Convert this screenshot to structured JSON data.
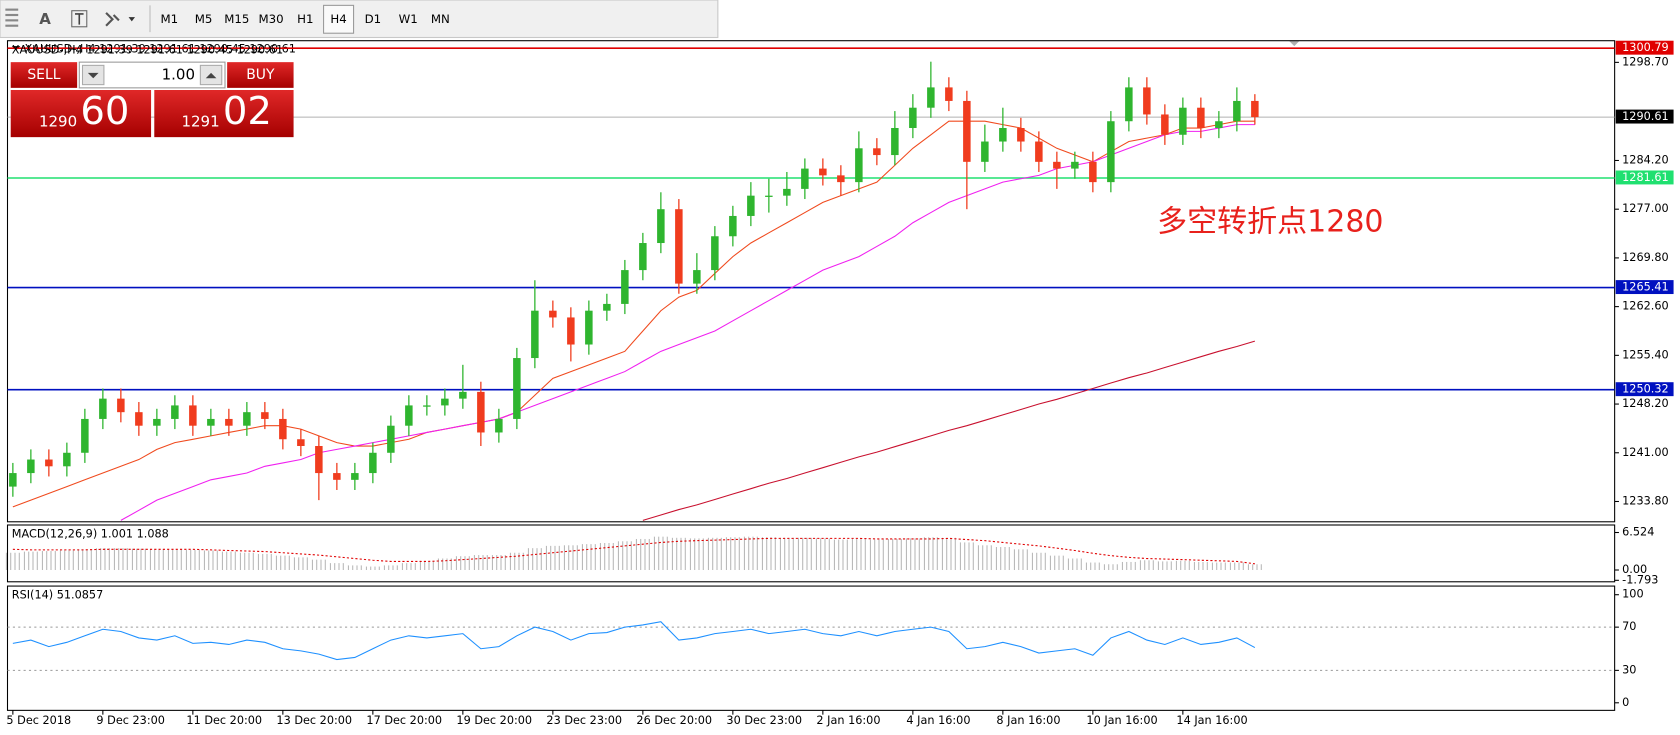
{
  "toolbar": {
    "text_tool": "A",
    "timeframes": [
      "M1",
      "M5",
      "M15",
      "M30",
      "H1",
      "H4",
      "D1",
      "W1",
      "MN"
    ],
    "active": "H4"
  },
  "trade_panel": {
    "sell": "SELL",
    "buy": "BUY",
    "lot": "1.00",
    "sell_big": "1290",
    "sell_small": "60",
    "buy_big": "1291",
    "buy_small": "02"
  },
  "chart_data": [
    {
      "type": "candlestick",
      "title": "XAUUSD-,H4  1291.39 1291.61 1290.45 1290.61",
      "annotation": "多空转折点1280",
      "annotation_color": "#e8211c",
      "up_color": "#2fb52f",
      "down_color": "#f03c1e",
      "categories": [
        "5 Dec 2018",
        null,
        null,
        null,
        null,
        "9 Dec 23:00",
        null,
        null,
        null,
        null,
        "11 Dec 20:00",
        null,
        null,
        null,
        null,
        "13 Dec 20:00",
        null,
        null,
        null,
        null,
        "17 Dec 20:00",
        null,
        null,
        null,
        null,
        "19 Dec 20:00",
        null,
        null,
        null,
        null,
        "23 Dec 23:00",
        null,
        null,
        null,
        null,
        "26 Dec 20:00",
        null,
        null,
        null,
        null,
        "30 Dec 23:00",
        null,
        null,
        null,
        null,
        "2 Jan 16:00",
        null,
        null,
        null,
        null,
        "4 Jan 16:00",
        null,
        null,
        null,
        null,
        "8 Jan 16:00",
        null,
        null,
        null,
        null,
        "10 Jan 16:00",
        null,
        null,
        null,
        null,
        "14 Jan 16:00",
        null,
        null,
        null,
        null
      ],
      "open": [
        1236,
        1238,
        1240,
        1239,
        1241,
        1246,
        1249,
        1247,
        1245,
        1246,
        1248,
        1245,
        1246,
        1245,
        1247,
        1246,
        1243,
        1242,
        1238,
        1237,
        1238,
        1241,
        1245,
        1248,
        1248,
        1249,
        1250,
        1244,
        1246,
        1255,
        1262,
        1261,
        1257,
        1262,
        1263,
        1268,
        1272,
        1277,
        1266,
        1268,
        1273,
        1276,
        1279,
        1279,
        1280,
        1283,
        1282,
        1281,
        1286,
        1285,
        1289,
        1292,
        1295,
        1293,
        1284,
        1287,
        1289,
        1287,
        1284,
        1283,
        1284,
        1281,
        1290,
        1295,
        1291,
        1288,
        1292,
        1289,
        1290,
        1293
      ],
      "high": [
        1239.5,
        1241.5,
        1241.5,
        1242.5,
        1247.5,
        1250.5,
        1250.5,
        1248.5,
        1247.5,
        1249.5,
        1249.5,
        1247.5,
        1247.5,
        1248.5,
        1248.5,
        1247.5,
        1244.5,
        1243.5,
        1239.5,
        1239.5,
        1242.5,
        1246.5,
        1249.5,
        1249.5,
        1250.5,
        1254,
        1251.5,
        1247.5,
        1256.5,
        1266.5,
        1263.5,
        1262.5,
        1263.5,
        1264.5,
        1269.5,
        1273.5,
        1279.5,
        1278.5,
        1270.5,
        1274.5,
        1277.5,
        1281,
        1281.5,
        1282.5,
        1284.5,
        1284.5,
        1283.5,
        1288.5,
        1287.5,
        1291.5,
        1294,
        1298.8,
        1296.5,
        1294.5,
        1289.5,
        1292,
        1290.5,
        1288.5,
        1285.5,
        1285.5,
        1285.5,
        1291.5,
        1296.5,
        1296.5,
        1292.5,
        1293.5,
        1293.5,
        1291.5,
        1295,
        1294
      ],
      "low": [
        1234.5,
        1236.5,
        1237.5,
        1237.5,
        1239.5,
        1244.5,
        1245.5,
        1243.5,
        1243.5,
        1244.5,
        1243.5,
        1243.5,
        1243.5,
        1243.5,
        1244.5,
        1241.5,
        1240.5,
        1234,
        1235.5,
        1235.5,
        1236.5,
        1239.5,
        1243.5,
        1246.5,
        1246.5,
        1247.5,
        1242,
        1242.5,
        1244.5,
        1253.5,
        1259.5,
        1254.5,
        1255.5,
        1260.5,
        1261.5,
        1266.5,
        1270.5,
        1264.5,
        1264.5,
        1266.5,
        1271.5,
        1274.5,
        1276.5,
        1277.5,
        1278.5,
        1280.5,
        1279,
        1279.5,
        1283.5,
        1283.5,
        1287.5,
        1290.5,
        1291.5,
        1277,
        1282.5,
        1285.5,
        1285.5,
        1282.5,
        1280,
        1281.5,
        1279.5,
        1279.5,
        1288.5,
        1289.5,
        1286.5,
        1286.5,
        1287.5,
        1287.5,
        1288.5,
        1289.5
      ],
      "close": [
        1238,
        1240,
        1239,
        1241,
        1246,
        1249,
        1247,
        1245,
        1246,
        1248,
        1245,
        1246,
        1245,
        1247,
        1246,
        1243,
        1242,
        1238,
        1237,
        1238,
        1241,
        1245,
        1248,
        1248,
        1249,
        1250,
        1244,
        1246,
        1255,
        1262,
        1261,
        1257,
        1262,
        1263,
        1268,
        1272,
        1277,
        1266,
        1268,
        1273,
        1276,
        1279,
        1279,
        1280,
        1283,
        1282,
        1281,
        1286,
        1285,
        1289,
        1292,
        1295,
        1293,
        1284,
        1287,
        1289,
        1287,
        1284,
        1283,
        1284,
        1281,
        1290,
        1295,
        1291,
        1288,
        1292,
        1289,
        1290,
        1293,
        1290.61
      ],
      "series": [
        {
          "color": "#f04a1e",
          "values": [
            1233,
            1234,
            1235,
            1236,
            1237,
            1238,
            1239,
            1240,
            1241.5,
            1242.5,
            1243,
            1243.5,
            1244,
            1244.5,
            1245,
            1245,
            1244.5,
            1243.5,
            1242.5,
            1242,
            1242,
            1242.5,
            1243,
            1244,
            1244.5,
            1245,
            1245.5,
            1246,
            1247,
            1249.5,
            1252,
            1253,
            1254,
            1255,
            1256,
            1259,
            1262,
            1264,
            1265,
            1267.5,
            1270,
            1272,
            1273.5,
            1275,
            1276.5,
            1278,
            1279,
            1280,
            1281,
            1283.5,
            1286,
            1288,
            1290,
            1290,
            1290,
            1289.5,
            1289,
            1287.5,
            1286,
            1285,
            1284,
            1285.5,
            1287,
            1287.5,
            1288,
            1289,
            1289,
            1289.5,
            1290,
            1290
          ]
        },
        {
          "color": "#f020f0",
          "values": [
            null,
            null,
            null,
            null,
            null,
            null,
            1231,
            1232.5,
            1234,
            1235,
            1236,
            1237,
            1237.5,
            1238,
            1239,
            1239.5,
            1240,
            1241,
            1241.5,
            1242,
            1242.5,
            1243,
            1243.5,
            1244,
            1244.5,
            1245,
            1245.5,
            1246,
            1247,
            1248,
            1249,
            1250,
            1251,
            1252,
            1253,
            1254.5,
            1256,
            1257,
            1258,
            1259,
            1260.5,
            1262,
            1263.5,
            1265,
            1266.5,
            1268,
            1269,
            1270,
            1271.5,
            1273,
            1275,
            1276.5,
            1278,
            1279,
            1280,
            1281,
            1281.5,
            1282,
            1283,
            1283.5,
            1284,
            1285,
            1286,
            1287,
            1288,
            1288.5,
            1288.5,
            1289,
            1289.5,
            1289.5
          ]
        },
        {
          "color": "#c8102e",
          "values": [
            null,
            null,
            null,
            null,
            null,
            null,
            null,
            null,
            null,
            null,
            null,
            null,
            null,
            null,
            null,
            null,
            null,
            null,
            null,
            null,
            null,
            null,
            null,
            null,
            null,
            null,
            null,
            null,
            null,
            null,
            null,
            null,
            null,
            null,
            null,
            1231,
            1231.8,
            1232.6,
            1233.3,
            1234.1,
            1234.9,
            1235.7,
            1236.5,
            1237.2,
            1238,
            1238.8,
            1239.6,
            1240.4,
            1241.1,
            1241.9,
            1242.7,
            1243.5,
            1244.3,
            1245,
            1245.8,
            1246.6,
            1247.4,
            1248.2,
            1248.9,
            1249.7,
            1250.5,
            1251.3,
            1252.1,
            1252.8,
            1253.6,
            1254.4,
            1255.2,
            1256,
            1256.7,
            1257.5
          ]
        }
      ],
      "levels": [
        {
          "value": 1300.79,
          "color": "#e00000"
        },
        {
          "value": 1290.61,
          "color": "#b0b0b0"
        },
        {
          "value": 1281.61,
          "color": "#20e070"
        },
        {
          "value": 1265.41,
          "color": "#0010c0"
        },
        {
          "value": 1250.32,
          "color": "#0010c0"
        }
      ],
      "ylim": [
        1230.8,
        1301.9
      ],
      "yticks": [
        {
          "value": 1298.7,
          "label": "1298.70"
        },
        {
          "value": 1284.2,
          "label": "1284.20"
        },
        {
          "value": 1277,
          "label": "1277.00"
        },
        {
          "value": 1269.8,
          "label": "1269.80"
        },
        {
          "value": 1262.6,
          "label": "1262.60"
        },
        {
          "value": 1255.4,
          "label": "1255.40"
        },
        {
          "value": 1248.2,
          "label": "1248.20"
        },
        {
          "value": 1241,
          "label": "1241.00"
        },
        {
          "value": 1233.8,
          "label": "1233.80"
        }
      ]
    },
    {
      "type": "macd",
      "title": "MACD(12,26,9) 1.001 1.088",
      "hist_color": "#b8b8b8",
      "signal_color": "#e00000",
      "values": [
        3.0,
        3.2,
        3.3,
        3.4,
        3.6,
        3.8,
        3.8,
        3.7,
        3.6,
        3.6,
        3.5,
        3.4,
        3.2,
        3.0,
        2.8,
        2.5,
        2.2,
        1.8,
        1.2,
        0.8,
        0.6,
        0.8,
        1.2,
        1.6,
        2.0,
        2.4,
        2.6,
        2.6,
        3.0,
        3.8,
        4.2,
        4.3,
        4.5,
        4.7,
        5.0,
        5.4,
        5.8,
        5.6,
        5.5,
        5.6,
        5.7,
        5.8,
        5.7,
        5.6,
        5.6,
        5.5,
        5.3,
        5.4,
        5.3,
        5.4,
        5.5,
        5.7,
        5.6,
        4.8,
        4.3,
        4.0,
        3.6,
        3.0,
        2.5,
        2.0,
        1.3,
        1.0,
        1.4,
        1.7,
        1.5,
        1.6,
        1.4,
        1.3,
        1.3,
        1.001
      ],
      "signal": [
        3.6,
        3.5,
        3.5,
        3.5,
        3.5,
        3.6,
        3.6,
        3.6,
        3.6,
        3.6,
        3.6,
        3.5,
        3.4,
        3.3,
        3.2,
        3.0,
        2.8,
        2.6,
        2.3,
        2.0,
        1.7,
        1.5,
        1.5,
        1.5,
        1.6,
        1.8,
        2.0,
        2.2,
        2.4,
        2.7,
        3.0,
        3.3,
        3.6,
        3.9,
        4.2,
        4.5,
        4.8,
        5.0,
        5.1,
        5.2,
        5.3,
        5.4,
        5.5,
        5.5,
        5.5,
        5.5,
        5.5,
        5.5,
        5.4,
        5.4,
        5.4,
        5.4,
        5.5,
        5.3,
        5.1,
        4.8,
        4.5,
        4.2,
        3.8,
        3.4,
        2.9,
        2.5,
        2.2,
        2.0,
        1.9,
        1.8,
        1.7,
        1.6,
        1.5,
        1.088
      ],
      "ylim": [
        -2.05,
        7.83
      ],
      "yticks": [
        6.524,
        {
          "value": 0,
          "label": "0.00"
        },
        -1.793
      ]
    },
    {
      "type": "line",
      "title": "RSI(14) 51.0857",
      "color": "#1e90ff",
      "values": [
        55,
        58,
        52,
        56,
        62,
        68,
        66,
        60,
        58,
        62,
        55,
        56,
        54,
        58,
        56,
        50,
        48,
        45,
        40,
        42,
        50,
        58,
        62,
        60,
        62,
        64,
        50,
        52,
        62,
        70,
        66,
        58,
        64,
        65,
        70,
        72,
        75,
        58,
        60,
        64,
        66,
        68,
        64,
        66,
        68,
        64,
        62,
        66,
        62,
        66,
        68,
        70,
        66,
        50,
        52,
        56,
        52,
        46,
        48,
        50,
        44,
        60,
        66,
        58,
        54,
        60,
        54,
        56,
        60,
        51.0857
      ],
      "guide_levels": [
        70,
        30
      ],
      "ylim": [
        -7,
        108
      ],
      "yticks": [
        100,
        70,
        30,
        0
      ]
    }
  ]
}
